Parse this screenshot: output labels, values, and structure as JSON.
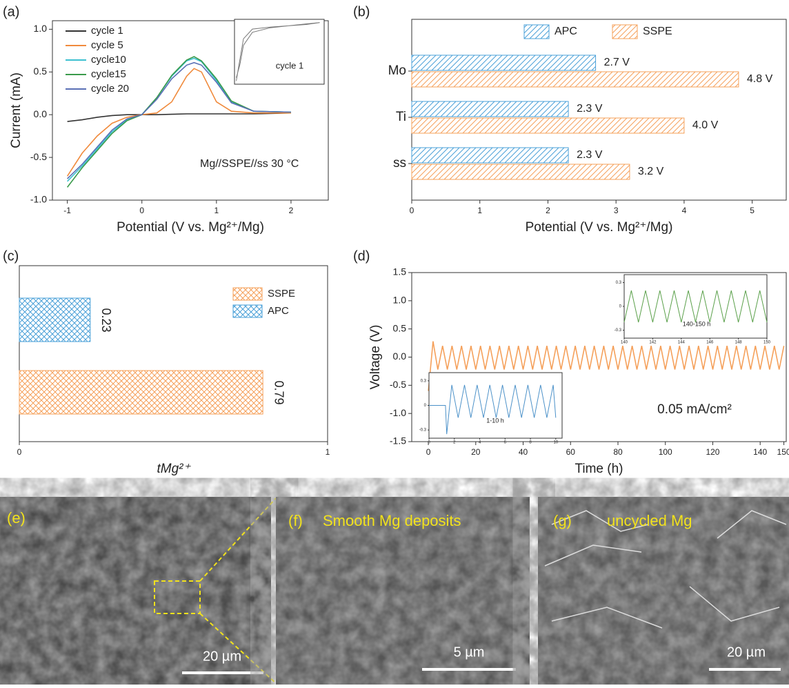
{
  "chart_data": [
    {
      "type": "line",
      "panel": "(a)",
      "xlabel": "Potential (V vs. Mg²⁺/Mg)",
      "ylabel": "Current (mA)",
      "annotation": "Mg//SSPE//ss 30 °C",
      "legend": "upper left",
      "x": [
        -1,
        -0.8,
        -0.6,
        -0.4,
        -0.2,
        0,
        0.2,
        0.4,
        0.6,
        0.7,
        0.8,
        1.0,
        1.2,
        1.5,
        2.0
      ],
      "series": [
        {
          "name": "cycle 1",
          "color": "#333333",
          "values": [
            -0.08,
            -0.06,
            -0.03,
            -0.01,
            0,
            0,
            0,
            0.005,
            0.01,
            0.01,
            0.01,
            0.01,
            0.01,
            0.01,
            0.02
          ]
        },
        {
          "name": "cycle 5",
          "color": "#f08a3c",
          "values": [
            -0.72,
            -0.45,
            -0.25,
            -0.1,
            -0.03,
            0,
            0.02,
            0.15,
            0.45,
            0.54,
            0.5,
            0.15,
            0.04,
            0.02,
            0.02
          ]
        },
        {
          "name": "cycle10",
          "color": "#3cc0d0",
          "values": [
            -0.78,
            -0.6,
            -0.4,
            -0.2,
            -0.06,
            0,
            0.2,
            0.45,
            0.63,
            0.66,
            0.62,
            0.4,
            0.15,
            0.04,
            0.03
          ]
        },
        {
          "name": "cycle15",
          "color": "#3a9a4a",
          "values": [
            -0.85,
            -0.62,
            -0.42,
            -0.22,
            -0.07,
            0,
            0.2,
            0.46,
            0.64,
            0.68,
            0.63,
            0.42,
            0.16,
            0.04,
            0.03
          ]
        },
        {
          "name": "cycle 20",
          "color": "#5a6fb5",
          "values": [
            -0.75,
            -0.58,
            -0.38,
            -0.18,
            -0.05,
            0,
            0.18,
            0.42,
            0.58,
            0.61,
            0.58,
            0.38,
            0.14,
            0.04,
            0.03
          ]
        }
      ],
      "xlim": [
        -1.2,
        2.5
      ],
      "ylim": [
        -1.0,
        1.1
      ],
      "xticks": [
        -1,
        0,
        1,
        2
      ],
      "yticks": [
        {
          "value": -1.0,
          "label": "-1.0"
        },
        {
          "value": -0.5,
          "label": "-0.5"
        },
        {
          "value": 0,
          "label": "0.0"
        },
        {
          "value": 0.5,
          "label": "0.5"
        },
        {
          "value": 1.0,
          "label": "1.0"
        }
      ]
    },
    {
      "type": "line",
      "annotation": "cycle 1",
      "xlim": [
        0,
        1
      ],
      "ylim": [
        0,
        1
      ],
      "x": [
        0.02,
        0.05,
        0.1,
        0.2,
        0.4,
        0.6,
        0.8,
        0.95,
        0.8,
        0.6,
        0.4,
        0.2,
        0.1,
        0.06,
        0.02
      ],
      "series": [
        {
          "color": "#777777",
          "values": [
            0.05,
            0.3,
            0.7,
            0.85,
            0.88,
            0.9,
            0.93,
            0.95,
            0.92,
            0.9,
            0.87,
            0.8,
            0.6,
            0.3,
            0.1
          ]
        }
      ]
    },
    {
      "type": "hbar",
      "panel": "(b)",
      "xlabel": "Potential (V vs. Mg²⁺/Mg)",
      "categories": [
        "Mo",
        "Ti",
        "ss"
      ],
      "series": [
        {
          "name": "APC",
          "color": "#4aa0d8",
          "values": [
            2.7,
            2.3,
            2.3
          ],
          "value_labels": [
            "2.7 V",
            "2.3 V",
            "2.3 V"
          ]
        },
        {
          "name": "SSPE",
          "color": "#f5a05a",
          "values": [
            4.8,
            4.0,
            3.2
          ],
          "value_labels": [
            "4.8 V",
            "4.0 V",
            "3.2 V"
          ]
        }
      ],
      "xlim": [
        0,
        5.5
      ],
      "xticks": [
        0,
        1,
        2,
        3,
        4,
        5
      ]
    },
    {
      "type": "hbar1",
      "panel": "(c)",
      "xlabel": "tMg²⁺",
      "legend": "upper right",
      "series": [
        {
          "name": "SSPE",
          "color": "#f5a05a",
          "values": [
            0.79
          ]
        },
        {
          "name": "APC",
          "color": "#4aa0d8",
          "values": [
            0.23
          ]
        }
      ],
      "xlim": [
        0,
        1
      ],
      "xticks": [
        0,
        1
      ]
    },
    {
      "type": "line",
      "panel": "(d)",
      "xlabel": "Time (h)",
      "ylabel": "Voltage (V)",
      "annotation": "0.05 mA/cm²",
      "x": [
        0,
        2,
        4,
        6,
        8,
        10,
        12,
        14,
        16,
        18,
        20,
        22,
        24,
        26,
        28,
        30,
        32,
        34,
        36,
        38,
        40,
        42,
        44,
        46,
        48,
        50,
        52,
        54,
        56,
        58,
        60,
        62,
        64,
        66,
        68,
        70,
        72,
        74,
        76,
        78,
        80,
        82,
        84,
        86,
        88,
        90,
        92,
        94,
        96,
        98,
        100,
        102,
        104,
        106,
        108,
        110,
        112,
        114,
        116,
        118,
        120,
        122,
        124,
        126,
        128,
        130,
        132,
        134,
        136,
        138,
        140,
        142,
        144,
        146,
        148,
        150
      ],
      "series": [
        {
          "name": null,
          "color": "#f5a05a",
          "values": [
            -0.6,
            0.28,
            -0.22,
            0.2,
            -0.22,
            0.2,
            -0.22,
            0.2,
            -0.22,
            0.2,
            -0.22,
            0.2,
            -0.22,
            0.2,
            -0.22,
            0.2,
            -0.22,
            0.2,
            -0.22,
            0.2,
            -0.22,
            0.2,
            -0.22,
            0.2,
            -0.22,
            0.2,
            -0.22,
            0.2,
            -0.22,
            0.2,
            -0.22,
            0.2,
            -0.22,
            0.2,
            -0.22,
            0.2,
            -0.22,
            0.2,
            -0.22,
            0.2,
            -0.22,
            0.2,
            -0.22,
            0.2,
            -0.22,
            0.2,
            -0.22,
            0.2,
            -0.22,
            0.2,
            -0.22,
            0.2,
            -0.22,
            0.2,
            -0.22,
            0.2,
            -0.22,
            0.2,
            -0.22,
            0.2,
            -0.22,
            0.2,
            -0.22,
            0.2,
            -0.22,
            0.2,
            -0.22,
            0.2,
            -0.22,
            0.2,
            -0.22,
            0.2,
            -0.22,
            0.2,
            -0.22,
            0.2
          ]
        }
      ],
      "xlim": [
        -7,
        151
      ],
      "ylim": [
        -1.5,
        1.5
      ],
      "xticks": [
        0,
        20,
        40,
        60,
        80,
        100,
        120,
        140,
        150
      ],
      "yticks": [
        {
          "value": -1.5,
          "label": "-1.5"
        },
        {
          "value": -1.0,
          "label": "-1.0"
        },
        {
          "value": -0.5,
          "label": "-0.5"
        },
        {
          "value": 0,
          "label": "0.0"
        },
        {
          "value": 0.5,
          "label": "0.5"
        },
        {
          "value": 1.0,
          "label": "1.0"
        },
        {
          "value": 1.5,
          "label": "1.5"
        }
      ]
    },
    {
      "type": "line",
      "annotation": "1-10 h",
      "xlim": [
        0,
        10.5
      ],
      "ylim": [
        -0.4,
        0.4
      ],
      "xticks": [
        0,
        2,
        4,
        6,
        8,
        10
      ],
      "yticks": [
        -0.3,
        0,
        0.3
      ],
      "x": [
        0,
        1.3,
        1.4,
        1.8,
        2.3,
        2.8,
        3.3,
        3.8,
        4.3,
        4.8,
        5.3,
        5.8,
        6.3,
        6.8,
        7.3,
        7.8,
        8.3,
        8.8,
        9.3,
        9.8,
        10
      ],
      "series": [
        {
          "color": "#4a90c8",
          "values": [
            0,
            0,
            -0.35,
            0.25,
            -0.15,
            0.25,
            -0.15,
            0.25,
            -0.15,
            0.25,
            -0.15,
            0.25,
            -0.15,
            0.25,
            -0.15,
            0.25,
            -0.15,
            0.25,
            -0.15,
            0.25,
            -0.15
          ]
        }
      ]
    },
    {
      "type": "line",
      "annotation": "140-150 h",
      "xlim": [
        140,
        150
      ],
      "ylim": [
        -0.4,
        0.4
      ],
      "xticks": [
        140,
        142,
        144,
        146,
        148,
        150
      ],
      "yticks": [
        -0.3,
        0,
        0.3
      ],
      "x": [
        140,
        140.5,
        141,
        141.5,
        142,
        142.5,
        143,
        143.5,
        144,
        144.5,
        145,
        145.5,
        146,
        146.5,
        147,
        147.5,
        148,
        148.5,
        149,
        149.5,
        150
      ],
      "series": [
        {
          "color": "#5aa04a",
          "values": [
            -0.2,
            0.2,
            -0.2,
            0.2,
            -0.2,
            0.2,
            -0.2,
            0.2,
            -0.2,
            0.2,
            -0.2,
            0.2,
            -0.2,
            0.2,
            -0.2,
            0.2,
            -0.2,
            0.2,
            -0.2,
            0.2,
            -0.2
          ]
        }
      ]
    }
  ],
  "images": [
    {
      "panel": "(e)",
      "scale": "20 µm"
    },
    {
      "panel": "(f)",
      "caption": "Smooth Mg deposits",
      "scale": "5 µm"
    },
    {
      "panel": "(g)",
      "caption": "uncycled Mg",
      "scale": "20 µm"
    }
  ]
}
